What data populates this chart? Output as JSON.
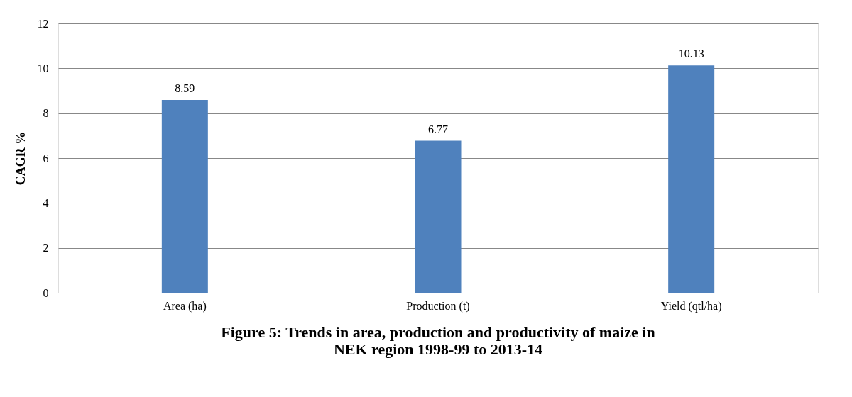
{
  "chart_data": {
    "type": "bar",
    "title": "Figure 5: Trends in area, production and productivity of maize in NEK region 1998-99 to 2013-14",
    "ylabel": "CAGR %",
    "categories": [
      "Area (ha)",
      "Production (t)",
      "Yield (qtl/ha)"
    ],
    "values": [
      8.59,
      6.77,
      10.13
    ],
    "color": "#4f81bd",
    "ylim": [
      0,
      12
    ],
    "yticks": [
      0,
      2,
      4,
      6,
      8,
      10,
      12
    ],
    "grid": "y",
    "data_labels": true
  }
}
